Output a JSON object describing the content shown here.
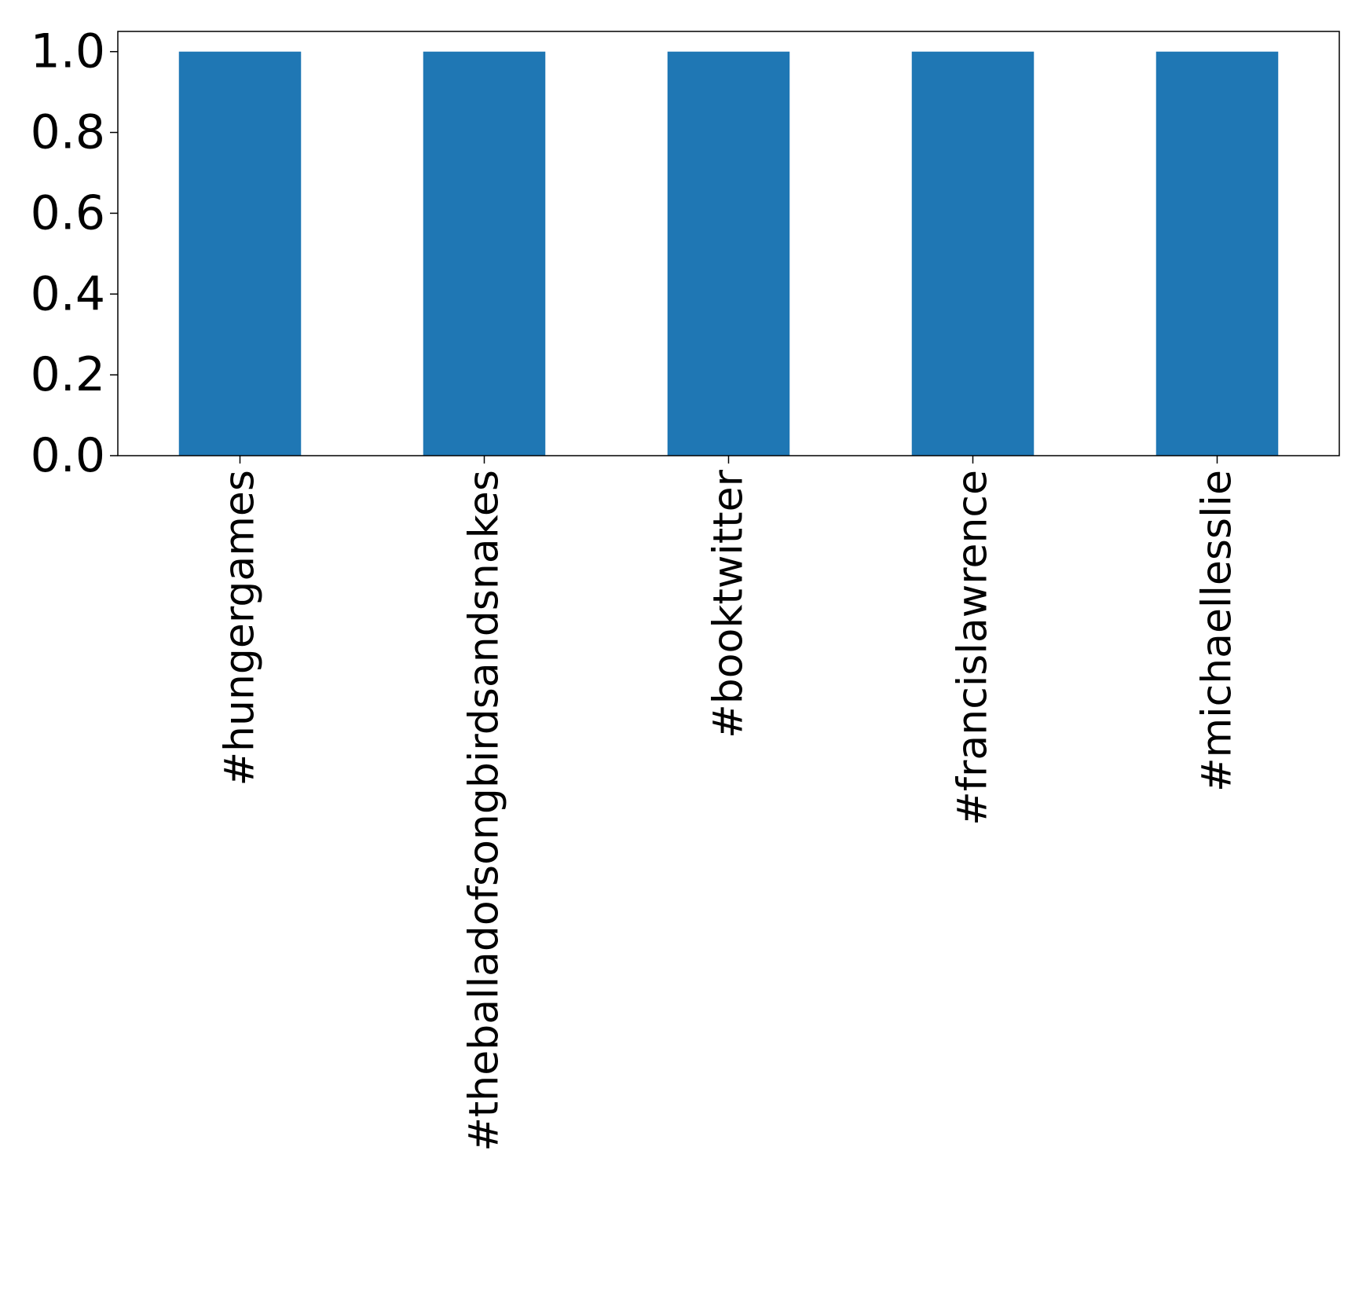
{
  "chart_data": {
    "type": "bar",
    "title": "",
    "xlabel": "",
    "ylabel": "",
    "categories": [
      "#hungergames",
      "#theballadofsongbirdsandsnakes",
      "#booktwitter",
      "#francislawrence",
      "#michaellesslie"
    ],
    "values": [
      1.0,
      1.0,
      1.0,
      1.0,
      1.0
    ],
    "ylim": [
      0,
      1.05
    ],
    "yticks": [
      0.0,
      0.2,
      0.4,
      0.6,
      0.8,
      1.0
    ],
    "ytick_labels": [
      "0.0",
      "0.2",
      "0.4",
      "0.6",
      "0.8",
      "1.0"
    ],
    "category_label_rotation": "vertical",
    "grid": false,
    "legend": "none",
    "bar_color": "#1f77b4"
  }
}
